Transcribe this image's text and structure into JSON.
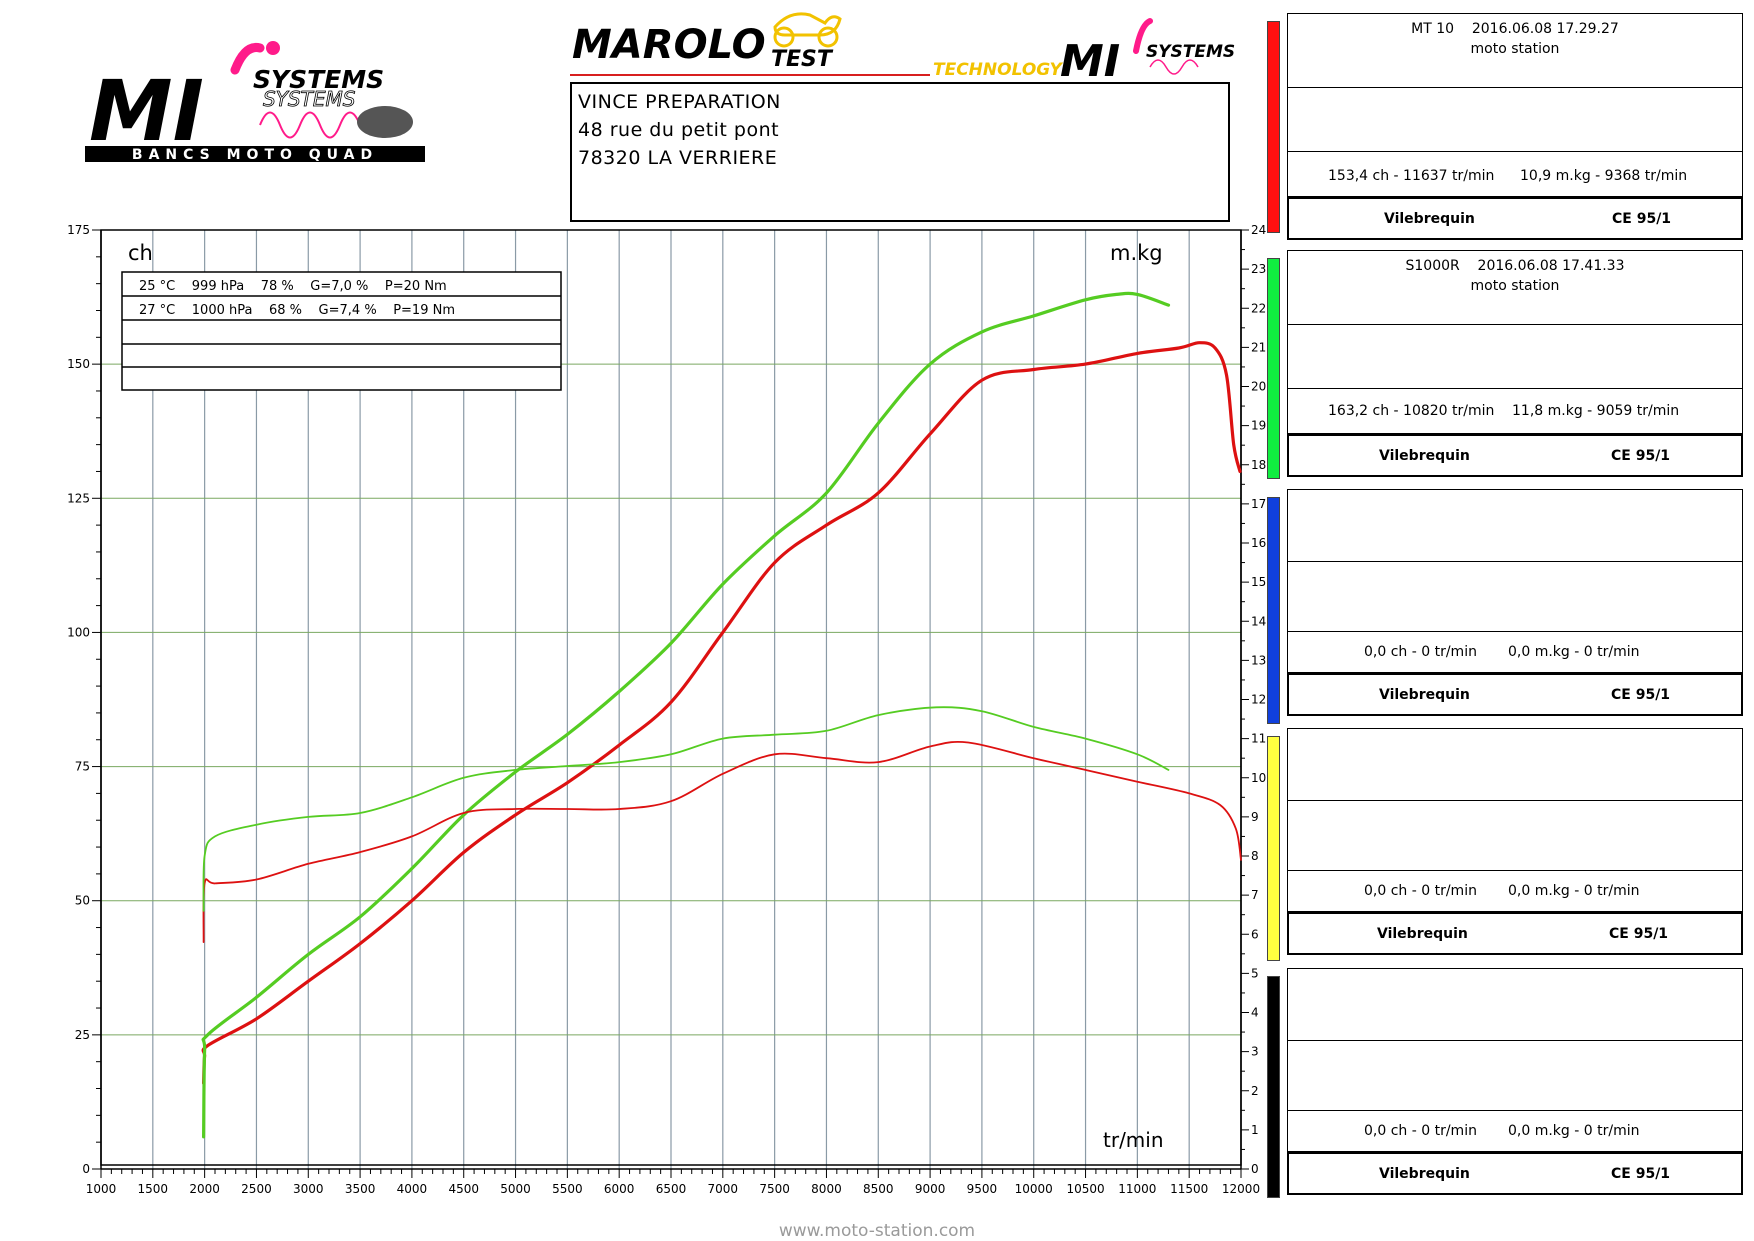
{
  "logos": {
    "mi_systems": {
      "brand": "MI",
      "word": "SYSTEMS",
      "tagline": "BANCS MOTO QUAD"
    },
    "marolo": {
      "brand": "MAROLO",
      "suffix": "TEST",
      "technology": "TECHNOLOGY",
      "mi": "MI",
      "systems": "SYSTEMS"
    }
  },
  "header": {
    "line1": "VINCE PREPARATION",
    "line2": "48 rue du petit pont",
    "line3": "78320 LA VERRIERE"
  },
  "conditions": [
    "25 °C    999 hPa    78 %    G=7,0 %    P=20 Nm",
    "27 °C    1000 hPa    68 %    G=7,4 %    P=19 Nm"
  ],
  "runs": [
    {
      "color": "#ff1010",
      "title": "MT 10    2016.06.08 17.29.27",
      "subtitle": "moto station",
      "power": "153,4 ch - 11637 tr/min",
      "torque": "10,9 m.kg - 9368 tr/min",
      "method": "Vilebrequin",
      "norm": "CE 95/1"
    },
    {
      "color": "#10ee40",
      "title": "S1000R    2016.06.08 17.41.33",
      "subtitle": "moto station",
      "power": "163,2 ch - 10820 tr/min",
      "torque": "11,8 m.kg - 9059 tr/min",
      "method": "Vilebrequin",
      "norm": "CE 95/1"
    },
    {
      "color": "#1040dd",
      "title": "",
      "subtitle": "",
      "power": "0,0 ch - 0 tr/min",
      "torque": "0,0 m.kg - 0 tr/min",
      "method": "Vilebrequin",
      "norm": "CE 95/1"
    },
    {
      "color": "#ffff40",
      "title": "",
      "subtitle": "",
      "power": "0,0 ch - 0 tr/min",
      "torque": "0,0 m.kg - 0 tr/min",
      "method": "Vilebrequin",
      "norm": "CE 95/1"
    },
    {
      "color": "#000000",
      "title": "",
      "subtitle": "",
      "power": "0,0 ch - 0 tr/min",
      "torque": "0,0 m.kg - 0 tr/min",
      "method": "Vilebrequin",
      "norm": "CE 95/1"
    }
  ],
  "footer": {
    "url": "www.moto-station.com"
  },
  "chart_data": {
    "type": "line",
    "grid": true,
    "left_axis": {
      "label": "ch",
      "range": [
        0,
        175
      ],
      "ticks": [
        0,
        25,
        50,
        75,
        100,
        125,
        150,
        175
      ]
    },
    "right_axis": {
      "label": "m.kg",
      "range": [
        0,
        24
      ],
      "ticks": [
        0,
        1,
        2,
        3,
        4,
        5,
        6,
        7,
        8,
        9,
        10,
        11,
        12,
        13,
        14,
        15,
        16,
        17,
        18,
        19,
        20,
        21,
        22,
        23,
        24
      ]
    },
    "x_axis": {
      "label": "tr/min",
      "range": [
        1000,
        12000
      ],
      "ticks": [
        1000,
        1500,
        2000,
        2500,
        3000,
        3500,
        4000,
        4500,
        5000,
        5500,
        6000,
        6500,
        7000,
        7500,
        8000,
        8500,
        9000,
        9500,
        10000,
        10500,
        11000,
        11500,
        12000
      ]
    },
    "series": [
      {
        "name": "MT 10",
        "kind": "power",
        "axis": "left",
        "color": "#dd1111",
        "x": [
          1990,
          2000,
          2030,
          2500,
          3000,
          3500,
          4000,
          4500,
          5000,
          5500,
          6000,
          6500,
          7000,
          7500,
          8000,
          8500,
          9000,
          9500,
          10000,
          10500,
          11000,
          11400,
          11600,
          11750,
          11860,
          11930,
          11990
        ],
        "y": [
          16,
          21,
          23,
          28,
          35,
          42,
          50,
          59,
          66,
          72,
          79,
          87,
          100,
          113,
          120,
          126,
          137,
          147,
          149,
          150,
          152,
          153,
          154,
          153,
          148,
          135,
          130
        ]
      },
      {
        "name": "S1000R",
        "kind": "power",
        "axis": "left",
        "color": "#55cc22",
        "x": [
          1990,
          2000,
          2030,
          2500,
          3000,
          3500,
          4000,
          4500,
          5000,
          5500,
          6000,
          6500,
          7000,
          7500,
          8000,
          8500,
          9000,
          9500,
          10000,
          10500,
          10800,
          11000,
          11300
        ],
        "y": [
          6,
          22,
          25,
          32,
          40,
          47,
          56,
          66,
          74,
          81,
          89,
          98,
          109,
          118,
          126,
          139,
          150,
          156,
          159,
          162,
          163,
          163,
          161
        ]
      },
      {
        "name": "MT 10",
        "kind": "torque",
        "axis": "right",
        "color": "#dd1111",
        "x": [
          1990,
          2000,
          2100,
          2500,
          3000,
          3500,
          4000,
          4500,
          5000,
          5500,
          6000,
          6500,
          7000,
          7500,
          8000,
          8500,
          9000,
          9368,
          10000,
          10500,
          11000,
          11500,
          11800,
          11950,
          12000
        ],
        "y": [
          5.8,
          7.3,
          7.3,
          7.4,
          7.8,
          8.1,
          8.5,
          9.1,
          9.2,
          9.2,
          9.2,
          9.4,
          10.1,
          10.6,
          10.5,
          10.4,
          10.8,
          10.9,
          10.5,
          10.2,
          9.9,
          9.6,
          9.3,
          8.7,
          7.9
        ]
      },
      {
        "name": "S1000R",
        "kind": "torque",
        "axis": "right",
        "color": "#55cc22",
        "x": [
          1990,
          2000,
          2100,
          2500,
          3000,
          3500,
          4000,
          4500,
          5000,
          5500,
          6000,
          6500,
          7000,
          7500,
          8000,
          8500,
          9059,
          9500,
          10000,
          10500,
          11000,
          11300
        ],
        "y": [
          6.6,
          8.0,
          8.5,
          8.8,
          9.0,
          9.1,
          9.5,
          10.0,
          10.2,
          10.3,
          10.4,
          10.6,
          11.0,
          11.1,
          11.2,
          11.6,
          11.8,
          11.7,
          11.3,
          11.0,
          10.6,
          10.2
        ]
      }
    ]
  }
}
